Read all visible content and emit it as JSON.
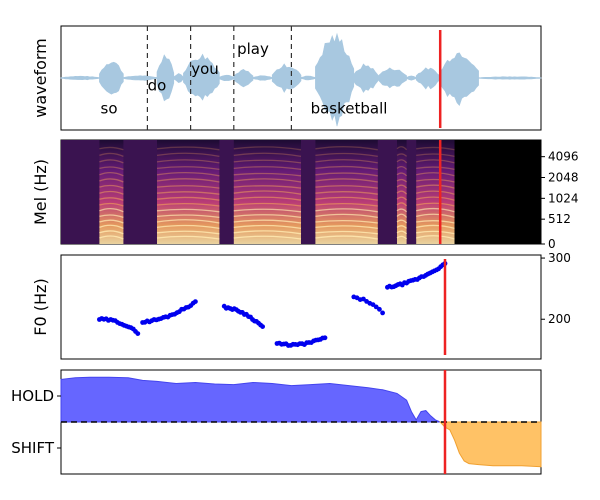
{
  "chart_data": [
    {
      "type": "area",
      "panel": "waveform",
      "ylabel": "waveform",
      "xlim": [
        0,
        1
      ],
      "words": [
        {
          "text": "so",
          "x": 0.1
        },
        {
          "text": "do",
          "x": 0.2
        },
        {
          "text": "you",
          "x": 0.3
        },
        {
          "text": "play",
          "x": 0.4
        },
        {
          "text": "basketball",
          "x": 0.6
        }
      ],
      "word_boundaries": [
        0.18,
        0.27,
        0.36,
        0.48
      ],
      "segments": [
        {
          "x0": 0.0,
          "x1": 0.08,
          "amp": 0.04
        },
        {
          "x0": 0.08,
          "x1": 0.13,
          "amp": 0.4
        },
        {
          "x0": 0.13,
          "x1": 0.2,
          "amp": 0.05
        },
        {
          "x0": 0.2,
          "x1": 0.235,
          "amp": 0.55
        },
        {
          "x0": 0.235,
          "x1": 0.255,
          "amp": 0.1
        },
        {
          "x0": 0.255,
          "x1": 0.33,
          "amp": 0.52
        },
        {
          "x0": 0.33,
          "x1": 0.36,
          "amp": 0.08
        },
        {
          "x0": 0.36,
          "x1": 0.4,
          "amp": 0.18
        },
        {
          "x0": 0.4,
          "x1": 0.44,
          "amp": 0.05
        },
        {
          "x0": 0.44,
          "x1": 0.5,
          "amp": 0.3
        },
        {
          "x0": 0.5,
          "x1": 0.53,
          "amp": 0.05
        },
        {
          "x0": 0.53,
          "x1": 0.61,
          "amp": 0.95
        },
        {
          "x0": 0.61,
          "x1": 0.66,
          "amp": 0.3
        },
        {
          "x0": 0.66,
          "x1": 0.72,
          "amp": 0.22
        },
        {
          "x0": 0.72,
          "x1": 0.74,
          "amp": 0.05
        },
        {
          "x0": 0.74,
          "x1": 0.79,
          "amp": 0.22
        },
        {
          "x0": 0.79,
          "x1": 0.87,
          "amp": 0.6
        },
        {
          "x0": 0.87,
          "x1": 1.0,
          "amp": 0.03
        }
      ],
      "cursor_x": 0.79
    },
    {
      "type": "heatmap",
      "panel": "mel",
      "ylabel": "Mel (Hz)",
      "yticks": [
        "0",
        "512",
        "1024",
        "2048",
        "4096"
      ],
      "xlim": [
        0,
        1
      ],
      "voiced": [
        [
          0.08,
          0.13
        ],
        [
          0.2,
          0.33
        ],
        [
          0.36,
          0.5
        ],
        [
          0.53,
          0.66
        ],
        [
          0.7,
          0.72
        ],
        [
          0.74,
          0.82
        ]
      ],
      "silence_from": 0.82,
      "cursor_x": 0.79
    },
    {
      "type": "scatter",
      "panel": "f0",
      "ylabel": "F0 (Hz)",
      "yticks": [
        200,
        300
      ],
      "ylim": [
        135,
        305
      ],
      "xlim": [
        0,
        1
      ],
      "color": "#0000ee",
      "contours": [
        {
          "x0": 0.08,
          "x1": 0.16,
          "y0": 200,
          "y1": 178,
          "n": 18
        },
        {
          "x0": 0.17,
          "x1": 0.28,
          "y0": 195,
          "y1": 228,
          "n": 24
        },
        {
          "x0": 0.34,
          "x1": 0.42,
          "y0": 220,
          "y1": 188,
          "n": 20
        },
        {
          "x0": 0.45,
          "x1": 0.55,
          "y0": 160,
          "y1": 170,
          "n": 22
        },
        {
          "x0": 0.61,
          "x1": 0.67,
          "y0": 235,
          "y1": 210,
          "n": 10
        },
        {
          "x0": 0.68,
          "x1": 0.8,
          "y0": 252,
          "y1": 290,
          "n": 28
        }
      ],
      "cursor_x": 0.8
    },
    {
      "type": "area",
      "panel": "hold-shift",
      "yticks": [
        "HOLD",
        "SHIFT"
      ],
      "ylim": [
        -1,
        1
      ],
      "threshold": 0,
      "hold_color": "#6666ff",
      "shift_color": "#ffc266",
      "hold": [
        [
          0.0,
          0.82
        ],
        [
          0.03,
          0.85
        ],
        [
          0.06,
          0.86
        ],
        [
          0.1,
          0.86
        ],
        [
          0.14,
          0.85
        ],
        [
          0.17,
          0.8
        ],
        [
          0.2,
          0.78
        ],
        [
          0.24,
          0.74
        ],
        [
          0.28,
          0.76
        ],
        [
          0.32,
          0.73
        ],
        [
          0.36,
          0.72
        ],
        [
          0.4,
          0.76
        ],
        [
          0.44,
          0.74
        ],
        [
          0.48,
          0.7
        ],
        [
          0.52,
          0.72
        ],
        [
          0.56,
          0.74
        ],
        [
          0.6,
          0.7
        ],
        [
          0.64,
          0.66
        ],
        [
          0.67,
          0.62
        ],
        [
          0.7,
          0.55
        ],
        [
          0.72,
          0.42
        ],
        [
          0.73,
          0.2
        ],
        [
          0.74,
          0.04
        ],
        [
          0.75,
          0.2
        ],
        [
          0.76,
          0.22
        ],
        [
          0.77,
          0.12
        ],
        [
          0.78,
          0.04
        ],
        [
          0.79,
          0.0
        ]
      ],
      "shift": [
        [
          0.79,
          0.0
        ],
        [
          0.8,
          -0.1
        ],
        [
          0.81,
          -0.15
        ],
        [
          0.82,
          -0.35
        ],
        [
          0.83,
          -0.6
        ],
        [
          0.84,
          -0.75
        ],
        [
          0.85,
          -0.8
        ],
        [
          0.87,
          -0.82
        ],
        [
          0.9,
          -0.84
        ],
        [
          0.93,
          -0.84
        ],
        [
          0.96,
          -0.84
        ],
        [
          1.0,
          -0.86
        ]
      ],
      "cursor_x": 0.8
    }
  ]
}
